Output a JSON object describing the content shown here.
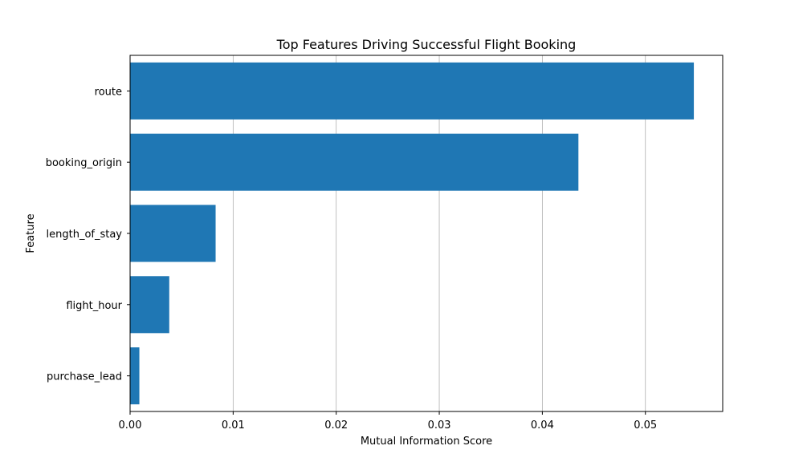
{
  "chart_data": {
    "type": "bar",
    "orientation": "horizontal",
    "title": "Top Features Driving Successful Flight Booking",
    "xlabel": "Mutual Information Score",
    "ylabel": "Feature",
    "categories": [
      "route",
      "booking_origin",
      "length_of_stay",
      "flight_hour",
      "purchase_lead"
    ],
    "values": [
      0.0547,
      0.0435,
      0.0083,
      0.0038,
      0.0009
    ],
    "xlim": [
      0,
      0.0575
    ],
    "xticks": [
      0.0,
      0.01,
      0.02,
      0.03,
      0.04,
      0.05
    ],
    "xtick_labels": [
      "0.00",
      "0.01",
      "0.02",
      "0.03",
      "0.04",
      "0.05"
    ],
    "grid": "vertical",
    "bar_color": "#1f77b4"
  }
}
